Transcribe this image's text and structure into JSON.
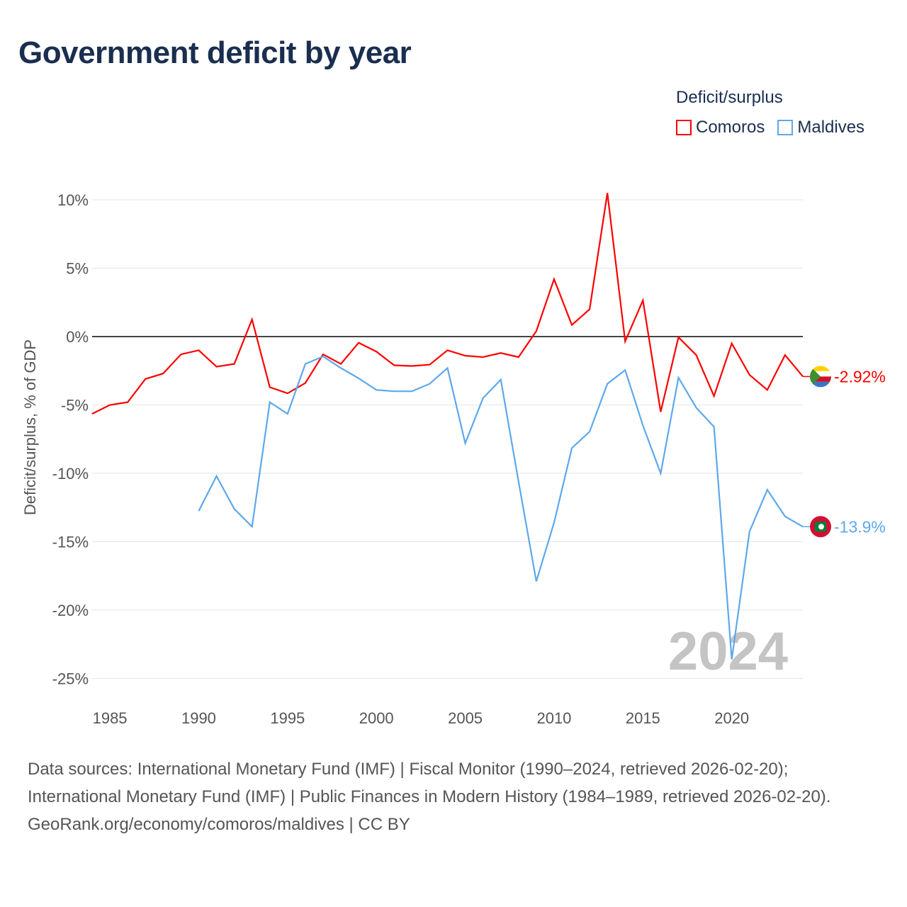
{
  "title": "Government deficit by year",
  "legend": {
    "title": "Deficit/surplus",
    "items": [
      {
        "label": "Comoros",
        "color": "#ff0000"
      },
      {
        "label": "Maldives",
        "color": "#5da8ec"
      }
    ]
  },
  "footer": {
    "sources": "Data sources: International Monetary Fund (IMF) | Fiscal Monitor (1990–2024, retrieved 2026-02-20); International Monetary Fund (IMF) | Public Finances in Modern History (1984–1989, retrieved 2026-02-20).",
    "attribution": "GeoRank.org/economy/comoros/maldives | CC BY"
  },
  "chart_data": {
    "type": "line",
    "title": "Government deficit by year",
    "ylabel": "Deficit/surplus, % of GDP",
    "xlabel": "",
    "xlim": [
      1984,
      2024
    ],
    "ylim": [
      -27,
      11.5
    ],
    "x_ticks": [
      "1985",
      "1990",
      "1995",
      "2000",
      "2005",
      "2010",
      "2015",
      "2020"
    ],
    "x_tick_values": [
      1985,
      1990,
      1995,
      2000,
      2005,
      2010,
      2015,
      2020
    ],
    "y_ticks": [
      "10%",
      "5%",
      "0%",
      "-5%",
      "-10%",
      "-15%",
      "-20%",
      "-25%"
    ],
    "y_tick_values": [
      10,
      5,
      0,
      -5,
      -10,
      -15,
      -20,
      -25
    ],
    "year_watermark": "2024",
    "series": [
      {
        "name": "Comoros",
        "color": "#ff0000",
        "start_year": 1984,
        "end_label": "-2.92%",
        "values": [
          -5.65,
          -5.0,
          -4.8,
          -3.1,
          -2.7,
          -1.3,
          -1.0,
          -2.2,
          -2.0,
          1.25,
          -3.7,
          -4.15,
          -3.4,
          -1.3,
          -2.0,
          -0.45,
          -1.1,
          -2.1,
          -2.15,
          -2.05,
          -1.0,
          -1.4,
          -1.5,
          -1.2,
          -1.5,
          0.4,
          4.2,
          0.85,
          2.0,
          10.5,
          -0.35,
          2.65,
          -5.5,
          -0.05,
          -1.35,
          -4.35,
          -0.5,
          -2.8,
          -3.9,
          -1.35,
          -2.92
        ]
      },
      {
        "name": "Maldives",
        "color": "#5da8ec",
        "start_year": 1990,
        "end_label": "-13.9%",
        "values": [
          -12.75,
          -10.2,
          -12.6,
          -13.9,
          -4.8,
          -5.65,
          -2.0,
          -1.45,
          -2.3,
          -3.05,
          -3.9,
          -4.0,
          -4.0,
          -3.45,
          -2.3,
          -7.8,
          -4.5,
          -3.15,
          -10.6,
          -17.9,
          -13.6,
          -8.15,
          -6.95,
          -3.45,
          -2.45,
          -6.5,
          -10.0,
          -3.0,
          -5.2,
          -6.6,
          -23.6,
          -14.25,
          -11.2,
          -13.15,
          -13.9
        ]
      }
    ]
  }
}
